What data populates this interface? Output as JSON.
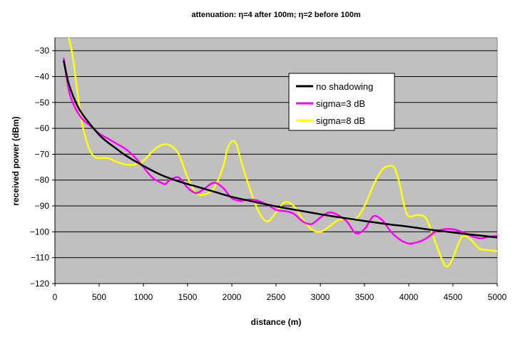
{
  "chart_data": {
    "type": "line",
    "title": "attenuation: η=4 after 100m; η=2 before 100m",
    "xlabel": "distance (m)",
    "ylabel": "received power (dBm)",
    "xlim": [
      0,
      5000
    ],
    "ylim": [
      -120,
      -25
    ],
    "x_ticks": [
      0,
      500,
      1000,
      1500,
      2000,
      2500,
      3000,
      3500,
      4000,
      4500,
      5000
    ],
    "y_ticks": [
      -120,
      -110,
      -100,
      -90,
      -80,
      -70,
      -60,
      -50,
      -40,
      -30
    ],
    "grid": "horizontal",
    "plot_background": "#c0c0c0",
    "legend_position": "top-right",
    "series": [
      {
        "name": "no shadowing",
        "color": "#000000",
        "points": [
          [
            100,
            -34
          ],
          [
            150,
            -42
          ],
          [
            200,
            -47
          ],
          [
            250,
            -51
          ],
          [
            300,
            -54
          ],
          [
            400,
            -58.5
          ],
          [
            500,
            -62.5
          ],
          [
            600,
            -65.5
          ],
          [
            700,
            -68
          ],
          [
            800,
            -70.5
          ],
          [
            1000,
            -74.5
          ],
          [
            1200,
            -78
          ],
          [
            1400,
            -80.5
          ],
          [
            1600,
            -82.5
          ],
          [
            1800,
            -84.5
          ],
          [
            2000,
            -86.5
          ],
          [
            2200,
            -88
          ],
          [
            2400,
            -89.5
          ],
          [
            2600,
            -90.8
          ],
          [
            2800,
            -92
          ],
          [
            3000,
            -93.2
          ],
          [
            3200,
            -94.3
          ],
          [
            3400,
            -95.3
          ],
          [
            3600,
            -96.3
          ],
          [
            3800,
            -97.2
          ],
          [
            4000,
            -98
          ],
          [
            4200,
            -99
          ],
          [
            4400,
            -99.8
          ],
          [
            4600,
            -100.7
          ],
          [
            4800,
            -101.4
          ],
          [
            5000,
            -102.2
          ]
        ]
      },
      {
        "name": "sigma=3 dB",
        "color": "#ff00ff",
        "points": [
          [
            100,
            -33
          ],
          [
            150,
            -44
          ],
          [
            200,
            -50
          ],
          [
            300,
            -56
          ],
          [
            400,
            -59
          ],
          [
            500,
            -62
          ],
          [
            600,
            -64
          ],
          [
            700,
            -66
          ],
          [
            800,
            -68
          ],
          [
            900,
            -71
          ],
          [
            1000,
            -75
          ],
          [
            1100,
            -79
          ],
          [
            1200,
            -81
          ],
          [
            1250,
            -81.5
          ],
          [
            1300,
            -80
          ],
          [
            1400,
            -79
          ],
          [
            1500,
            -83
          ],
          [
            1600,
            -85
          ],
          [
            1700,
            -83
          ],
          [
            1800,
            -81
          ],
          [
            1900,
            -83
          ],
          [
            2000,
            -87
          ],
          [
            2100,
            -88
          ],
          [
            2200,
            -87.5
          ],
          [
            2300,
            -88
          ],
          [
            2400,
            -89.5
          ],
          [
            2500,
            -91.5
          ],
          [
            2600,
            -92
          ],
          [
            2700,
            -93
          ],
          [
            2800,
            -96
          ],
          [
            2900,
            -97
          ],
          [
            3000,
            -94.5
          ],
          [
            3100,
            -92.5
          ],
          [
            3200,
            -93.5
          ],
          [
            3300,
            -96
          ],
          [
            3400,
            -100.5
          ],
          [
            3500,
            -99
          ],
          [
            3600,
            -94
          ],
          [
            3700,
            -95.5
          ],
          [
            3800,
            -100
          ],
          [
            3900,
            -103
          ],
          [
            4000,
            -104.5
          ],
          [
            4100,
            -104
          ],
          [
            4200,
            -102.5
          ],
          [
            4300,
            -100
          ],
          [
            4400,
            -99
          ],
          [
            4500,
            -99
          ],
          [
            4600,
            -100
          ],
          [
            4700,
            -101.5
          ],
          [
            4800,
            -102.5
          ],
          [
            4900,
            -102
          ],
          [
            5000,
            -101.5
          ]
        ]
      },
      {
        "name": "sigma=8 dB",
        "color": "#ffff00",
        "points": [
          [
            150,
            -24
          ],
          [
            200,
            -32
          ],
          [
            250,
            -45
          ],
          [
            300,
            -57
          ],
          [
            350,
            -64
          ],
          [
            400,
            -69
          ],
          [
            450,
            -71
          ],
          [
            500,
            -71.5
          ],
          [
            600,
            -71.5
          ],
          [
            700,
            -73
          ],
          [
            800,
            -74
          ],
          [
            900,
            -74
          ],
          [
            1000,
            -72.5
          ],
          [
            1100,
            -69
          ],
          [
            1200,
            -66.5
          ],
          [
            1300,
            -66.5
          ],
          [
            1400,
            -70
          ],
          [
            1500,
            -79
          ],
          [
            1600,
            -85
          ],
          [
            1700,
            -85.5
          ],
          [
            1800,
            -83
          ],
          [
            1900,
            -75
          ],
          [
            1950,
            -68
          ],
          [
            2000,
            -65
          ],
          [
            2050,
            -66
          ],
          [
            2100,
            -72
          ],
          [
            2200,
            -83
          ],
          [
            2300,
            -92
          ],
          [
            2400,
            -96
          ],
          [
            2500,
            -92.5
          ],
          [
            2600,
            -88.5
          ],
          [
            2700,
            -90
          ],
          [
            2800,
            -95
          ],
          [
            2900,
            -99
          ],
          [
            3000,
            -100
          ],
          [
            3100,
            -98
          ],
          [
            3200,
            -95.5
          ],
          [
            3300,
            -95
          ],
          [
            3400,
            -95
          ],
          [
            3500,
            -90
          ],
          [
            3600,
            -82
          ],
          [
            3700,
            -76
          ],
          [
            3800,
            -74.5
          ],
          [
            3850,
            -76
          ],
          [
            3900,
            -82
          ],
          [
            3950,
            -90
          ],
          [
            4000,
            -94
          ],
          [
            4100,
            -93.5
          ],
          [
            4200,
            -95
          ],
          [
            4300,
            -104
          ],
          [
            4400,
            -112.5
          ],
          [
            4450,
            -113
          ],
          [
            4500,
            -110
          ],
          [
            4600,
            -102
          ],
          [
            4700,
            -103
          ],
          [
            4800,
            -106.5
          ],
          [
            4900,
            -107
          ],
          [
            5000,
            -107.5
          ]
        ]
      }
    ]
  }
}
